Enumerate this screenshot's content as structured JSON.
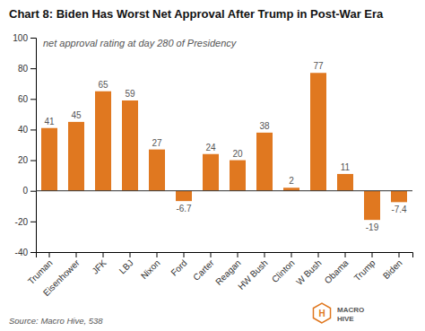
{
  "chart_data": {
    "type": "bar",
    "title": "Chart 8: Biden Has Worst Net Approval After Trump in Post-War Era",
    "subtitle": "net approval rating at day 280 of Presidency",
    "categories": [
      "Truman",
      "Eisenhower",
      "JFK",
      "LBJ",
      "Nixon",
      "Ford",
      "Carter",
      "Reagan",
      "HW Bush",
      "Clinton",
      "W Bush",
      "Obama",
      "Trump",
      "Biden"
    ],
    "values": [
      41,
      45,
      65,
      59,
      27,
      -6.7,
      24,
      20,
      38,
      2,
      77,
      11,
      -19,
      -7.4
    ],
    "color": "#E07820",
    "ylim": [
      -40,
      100
    ],
    "yticks": [
      -40,
      -20,
      0,
      20,
      40,
      60,
      80,
      100
    ],
    "grid": false,
    "data_labels": true,
    "source": "Source: Macro Hive,  538",
    "logo": [
      "H",
      "MACRO",
      "HIVE"
    ]
  }
}
